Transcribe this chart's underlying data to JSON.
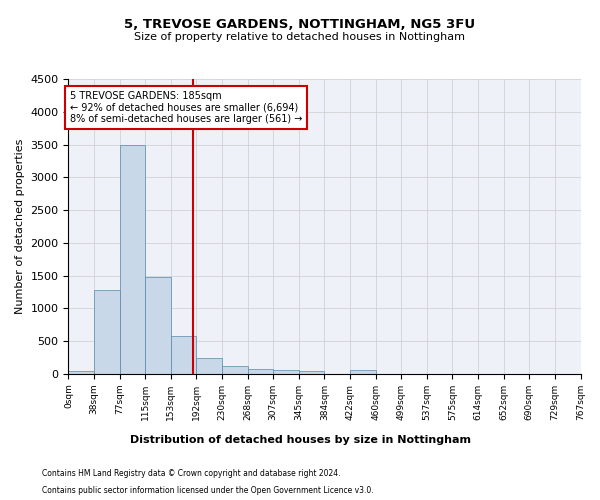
{
  "title1": "5, TREVOSE GARDENS, NOTTINGHAM, NG5 3FU",
  "title2": "Size of property relative to detached houses in Nottingham",
  "xlabel": "Distribution of detached houses by size in Nottingham",
  "ylabel": "Number of detached properties",
  "bar_values": [
    40,
    1280,
    3500,
    1480,
    575,
    240,
    115,
    80,
    55,
    45,
    0,
    55,
    0,
    0,
    0,
    0,
    0,
    0,
    0,
    0
  ],
  "bin_labels": [
    "0sqm",
    "38sqm",
    "77sqm",
    "115sqm",
    "153sqm",
    "192sqm",
    "230sqm",
    "268sqm",
    "307sqm",
    "345sqm",
    "384sqm",
    "422sqm",
    "460sqm",
    "499sqm",
    "537sqm",
    "575sqm",
    "614sqm",
    "652sqm",
    "690sqm",
    "729sqm",
    "767sqm"
  ],
  "bar_color": "#c8d8e8",
  "bar_edge_color": "#5588aa",
  "property_line_x": 185,
  "property_line_color": "#cc0000",
  "annotation_text": "5 TREVOSE GARDENS: 185sqm\n← 92% of detached houses are smaller (6,694)\n8% of semi-detached houses are larger (561) →",
  "annotation_box_color": "#cc0000",
  "ylim": [
    0,
    4500
  ],
  "yticks": [
    0,
    500,
    1000,
    1500,
    2000,
    2500,
    3000,
    3500,
    4000,
    4500
  ],
  "footnote1": "Contains HM Land Registry data © Crown copyright and database right 2024.",
  "footnote2": "Contains public sector information licensed under the Open Government Licence v3.0.",
  "bin_width": 38,
  "num_bins": 20,
  "grid_color": "#cccccc",
  "bg_color": "#eef2f8"
}
